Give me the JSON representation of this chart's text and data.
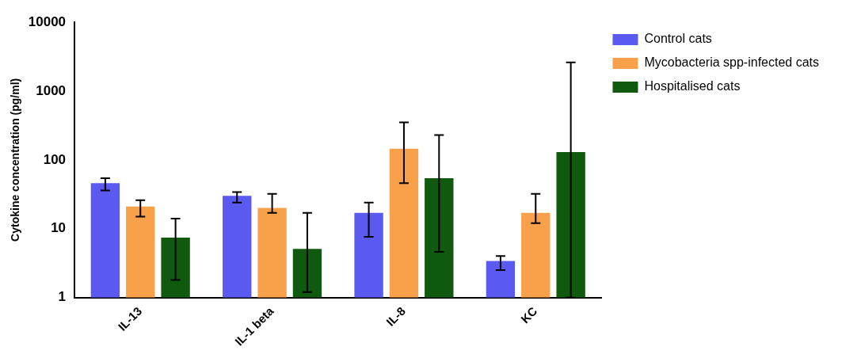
{
  "chart_data": {
    "type": "bar",
    "ylabel": "Cytokine concentration (pg/ml)",
    "categories": [
      "IL-13",
      "IL-1 beta",
      "IL-8",
      "KC"
    ],
    "series": [
      {
        "name": "Control cats",
        "color": "#5a5af0",
        "values": [
          46,
          30,
          17,
          3.4
        ],
        "errors": [
          [
            36,
            54
          ],
          [
            24,
            34
          ],
          [
            7.6,
            24
          ],
          [
            2.5,
            4
          ]
        ]
      },
      {
        "name": "Mycobacteria spp-infected cats",
        "color": "#f9a04a",
        "values": [
          21,
          20,
          145,
          17
        ],
        "errors": [
          [
            15,
            26
          ],
          [
            17,
            32
          ],
          [
            46,
            350
          ],
          [
            12,
            32
          ]
        ]
      },
      {
        "name": "Hospitalised cats",
        "color": "#0f5a0f",
        "values": [
          7.4,
          5.1,
          54,
          130
        ],
        "errors": [
          [
            1.8,
            14
          ],
          [
            1.2,
            17
          ],
          [
            4.6,
            230
          ],
          [
            1,
            2600
          ]
        ]
      }
    ],
    "log": true,
    "ylim": [
      1,
      10000
    ],
    "yticks": [
      1,
      10,
      100,
      1000,
      10000
    ],
    "grid": false,
    "legend": "top right"
  }
}
